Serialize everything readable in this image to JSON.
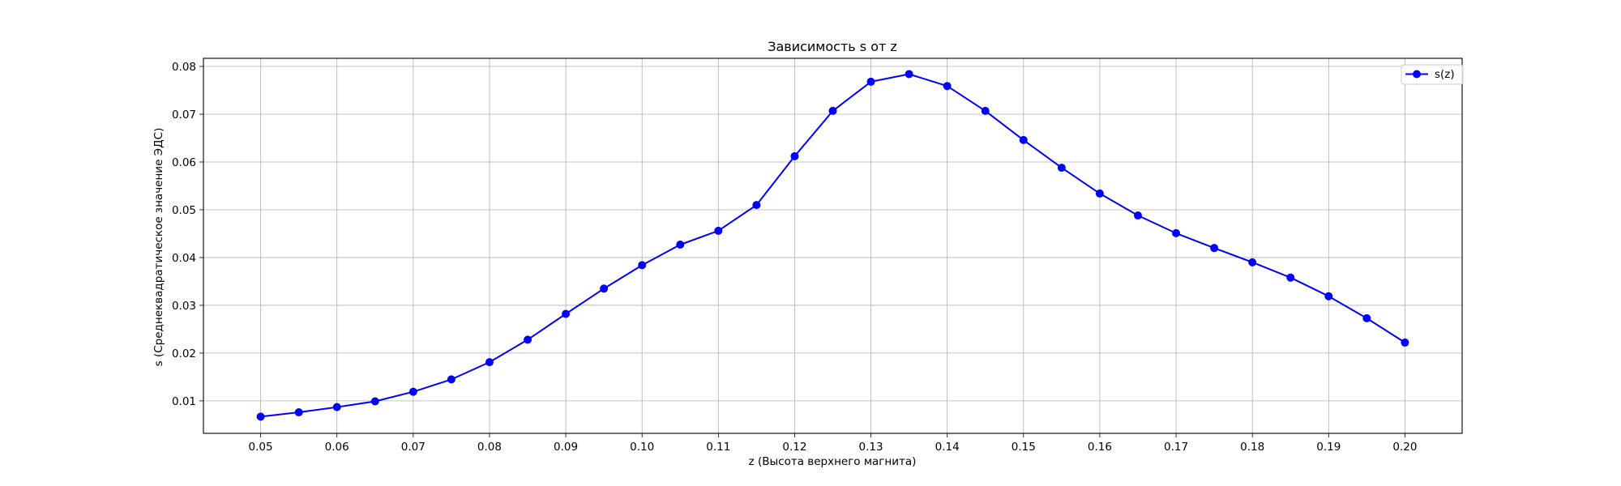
{
  "chart_data": {
    "type": "line",
    "title": "Зависимость s от z",
    "xlabel": "z (Высота верхнего магнита)",
    "ylabel": "s (Среднеквадратическое значение ЭДС)",
    "xlim": [
      0.0425,
      0.2075
    ],
    "ylim": [
      0.0032,
      0.0817
    ],
    "grid": true,
    "legend_position": "top-right",
    "x_ticks": [
      0.05,
      0.06,
      0.07,
      0.08,
      0.09,
      0.1,
      0.11,
      0.12,
      0.13,
      0.14,
      0.15,
      0.16,
      0.17,
      0.18,
      0.19,
      0.2
    ],
    "x_tick_labels": [
      "0.05",
      "0.06",
      "0.07",
      "0.08",
      "0.09",
      "0.10",
      "0.11",
      "0.12",
      "0.13",
      "0.14",
      "0.15",
      "0.16",
      "0.17",
      "0.18",
      "0.19",
      "0.20"
    ],
    "y_ticks": [
      0.01,
      0.02,
      0.03,
      0.04,
      0.05,
      0.06,
      0.07,
      0.08
    ],
    "y_tick_labels": [
      "0.01",
      "0.02",
      "0.03",
      "0.04",
      "0.05",
      "0.06",
      "0.07",
      "0.08"
    ],
    "series": [
      {
        "name": "s(z)",
        "color": "#0000ff",
        "marker": "circle",
        "x": [
          0.05,
          0.055,
          0.06,
          0.065,
          0.07,
          0.075,
          0.08,
          0.085,
          0.09,
          0.095,
          0.1,
          0.105,
          0.11,
          0.115,
          0.12,
          0.125,
          0.13,
          0.135,
          0.14,
          0.145,
          0.15,
          0.155,
          0.16,
          0.165,
          0.17,
          0.175,
          0.18,
          0.185,
          0.19,
          0.195,
          0.2
        ],
        "y": [
          0.0067,
          0.0076,
          0.0087,
          0.0099,
          0.0119,
          0.0145,
          0.0181,
          0.0228,
          0.0282,
          0.0335,
          0.0384,
          0.0427,
          0.0456,
          0.051,
          0.0612,
          0.0707,
          0.0768,
          0.0784,
          0.0759,
          0.0707,
          0.0646,
          0.0588,
          0.0534,
          0.0488,
          0.0451,
          0.042,
          0.039,
          0.0358,
          0.0319,
          0.0273,
          0.0222
        ]
      }
    ]
  }
}
